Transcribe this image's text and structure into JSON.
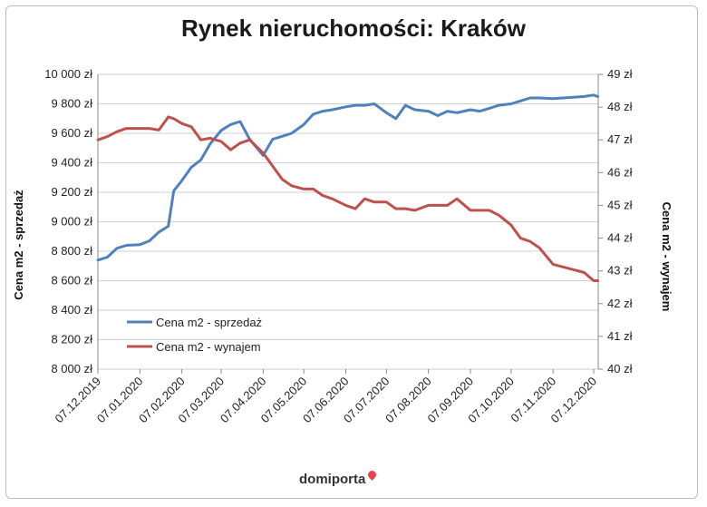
{
  "chart_data": {
    "type": "line",
    "title": "Rynek nieruchomości: Kraków",
    "ylabel_left": "Cena m2 - sprzedaż",
    "ylabel_right": "Cena m2 - wynajem",
    "ylim_left": [
      8000,
      10000
    ],
    "ylim_right": [
      40,
      49
    ],
    "yticks_left": [
      "8 000 zł",
      "8 200 zł",
      "8 400 zł",
      "8 600 zł",
      "8 800 zł",
      "9 000 zł",
      "9 200 zł",
      "9 400 zł",
      "9 600 zł",
      "9 800 zł",
      "10 000 zł"
    ],
    "yticks_right": [
      "40 zł",
      "41 zł",
      "42 zł",
      "43 zł",
      "44 zł",
      "45 zł",
      "46 zł",
      "47 zł",
      "48 zł",
      "49 zł"
    ],
    "xticks": [
      "07.12.2019",
      "07.01.2020",
      "07.02.2020",
      "07.03.2020",
      "07.04.2020",
      "07.05.2020",
      "07.06.2020",
      "07.07.2020",
      "07.08.2020",
      "07.09.2020",
      "07.10.2020",
      "07.11.2020",
      "07.12.2020"
    ],
    "legend_position": "lower-left",
    "grid": "horizontal",
    "series": [
      {
        "name": "Cena m2 - sprzedaż",
        "axis": "left",
        "color": "#4f81bd",
        "x": [
          "2019-12-07",
          "2019-12-14",
          "2019-12-21",
          "2019-12-28",
          "2020-01-07",
          "2020-01-14",
          "2020-01-21",
          "2020-01-28",
          "2020-02-01",
          "2020-02-07",
          "2020-02-14",
          "2020-02-21",
          "2020-02-28",
          "2020-03-07",
          "2020-03-14",
          "2020-03-21",
          "2020-03-28",
          "2020-04-07",
          "2020-04-14",
          "2020-04-21",
          "2020-04-28",
          "2020-05-07",
          "2020-05-14",
          "2020-05-21",
          "2020-05-28",
          "2020-06-07",
          "2020-06-14",
          "2020-06-21",
          "2020-06-28",
          "2020-07-07",
          "2020-07-14",
          "2020-07-21",
          "2020-07-28",
          "2020-08-07",
          "2020-08-14",
          "2020-08-21",
          "2020-08-28",
          "2020-09-07",
          "2020-09-14",
          "2020-09-21",
          "2020-09-28",
          "2020-10-07",
          "2020-10-14",
          "2020-10-21",
          "2020-10-28",
          "2020-11-07",
          "2020-11-30",
          "2020-12-07",
          "2020-12-10"
        ],
        "values": [
          8740,
          8760,
          8820,
          8840,
          8845,
          8870,
          8930,
          8970,
          9210,
          9280,
          9370,
          9420,
          9530,
          9620,
          9660,
          9680,
          9560,
          9450,
          9560,
          9580,
          9600,
          9660,
          9730,
          9750,
          9760,
          9780,
          9790,
          9790,
          9800,
          9740,
          9700,
          9790,
          9760,
          9750,
          9720,
          9750,
          9740,
          9760,
          9750,
          9770,
          9790,
          9800,
          9820,
          9840,
          9840,
          9835,
          9850,
          9860,
          9850
        ]
      },
      {
        "name": "Cena m2 - wynajem",
        "axis": "right",
        "color": "#c0504d",
        "x": [
          "2019-12-07",
          "2019-12-14",
          "2019-12-21",
          "2019-12-28",
          "2020-01-07",
          "2020-01-14",
          "2020-01-21",
          "2020-01-28",
          "2020-02-01",
          "2020-02-07",
          "2020-02-14",
          "2020-02-21",
          "2020-02-28",
          "2020-03-07",
          "2020-03-14",
          "2020-03-21",
          "2020-03-28",
          "2020-04-07",
          "2020-04-14",
          "2020-04-21",
          "2020-04-28",
          "2020-05-07",
          "2020-05-14",
          "2020-05-21",
          "2020-05-28",
          "2020-06-07",
          "2020-06-14",
          "2020-06-21",
          "2020-06-28",
          "2020-07-07",
          "2020-07-14",
          "2020-07-21",
          "2020-07-28",
          "2020-08-07",
          "2020-08-14",
          "2020-08-21",
          "2020-08-28",
          "2020-09-07",
          "2020-09-14",
          "2020-09-21",
          "2020-09-28",
          "2020-10-07",
          "2020-10-14",
          "2020-10-21",
          "2020-10-28",
          "2020-11-07",
          "2020-11-30",
          "2020-12-07",
          "2020-12-10"
        ],
        "values": [
          47.0,
          47.1,
          47.25,
          47.35,
          47.35,
          47.35,
          47.3,
          47.7,
          47.65,
          47.5,
          47.4,
          47.0,
          47.05,
          46.95,
          46.7,
          46.9,
          47.0,
          46.6,
          46.2,
          45.8,
          45.6,
          45.5,
          45.5,
          45.3,
          45.2,
          45.0,
          44.9,
          45.2,
          45.1,
          45.1,
          44.9,
          44.9,
          44.85,
          45.0,
          45.0,
          45.0,
          45.2,
          44.85,
          44.85,
          44.85,
          44.7,
          44.4,
          44.0,
          43.9,
          43.7,
          43.2,
          42.95,
          42.7,
          42.7
        ]
      }
    ]
  },
  "logo_text": "domiporta"
}
